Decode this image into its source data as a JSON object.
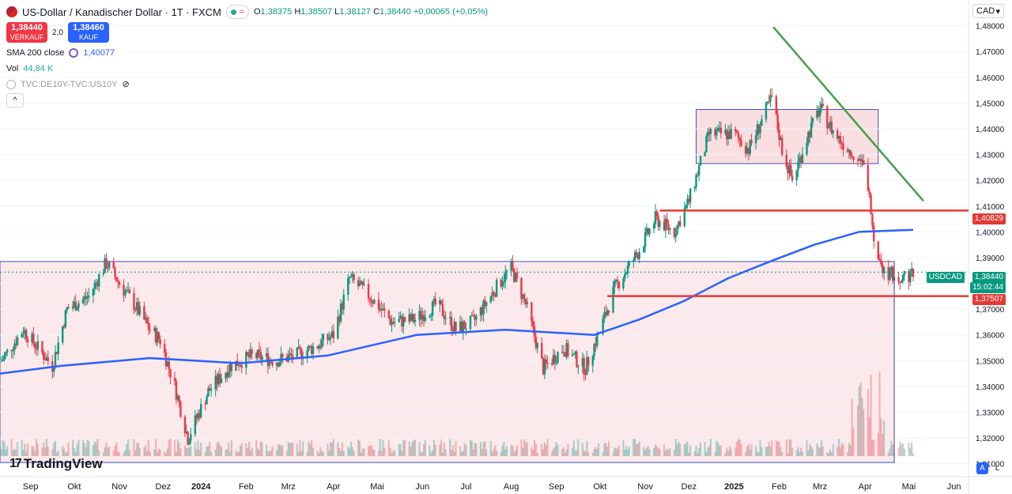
{
  "header": {
    "title": "US-Dollar / Kanadischer Dollar · 1T · FXCM",
    "ohlc": {
      "o_label": "O",
      "o": "1,38375",
      "h_label": "H",
      "h": "1,38507",
      "l_label": "L",
      "l": "1,38127",
      "c_label": "C",
      "c": "1,38440",
      "change": "+0,00065 (+0,05%)"
    },
    "sell": {
      "price": "1,38440",
      "label": "VERKAUF"
    },
    "buy": {
      "price": "1,38460",
      "label": "KAUF"
    },
    "spread": "2,0",
    "sma_label": "SMA 200 close",
    "sma_value": "1,40077",
    "vol_label": "Vol",
    "vol_value": "44,84 K",
    "tvc_label": "TVC:DE10Y-TVC:US10Y",
    "collapse_symbol": "^"
  },
  "axis": {
    "currency": "CAD",
    "y_ticks": [
      "1,48000",
      "1,47000",
      "1,46000",
      "1,45000",
      "1,44000",
      "1,43000",
      "1,42000",
      "1,41000",
      "1,40000",
      "1,39000",
      "1,38000",
      "1,37000",
      "1,36000",
      "1,35000",
      "1,34000",
      "1,33000",
      "1,32000",
      "1,31000"
    ],
    "x_ticks": [
      "Sep",
      "Okt",
      "Nov",
      "Dez",
      "2024",
      "Feb",
      "Mrz",
      "Apr",
      "Mai",
      "Jun",
      "Jul",
      "Aug",
      "Sep",
      "Okt",
      "Nov",
      "Dez",
      "2025",
      "Feb",
      "Mrz",
      "Apr",
      "Mai",
      "Jun"
    ],
    "tags": {
      "resistance": "1,40829",
      "symbol": "USDCAD",
      "last": "1,38440",
      "countdown": "15:02:44",
      "support": "1,37507"
    },
    "auto_btn": "A",
    "log_btn": "L"
  },
  "brand": "TradingView",
  "colors": {
    "up": "#089981",
    "down": "#f23645",
    "sma": "#2962ff",
    "trend": "#43a047",
    "level": "#e53935",
    "zone": "#f8d7da"
  },
  "chart_data": {
    "type": "candlestick",
    "symbol": "USDCAD",
    "interval": "1D",
    "ylim": [
      1.305,
      1.49
    ],
    "x_range": [
      "2023-08-20",
      "2025-06-15"
    ],
    "close_anchors": [
      [
        "2023-08-21",
        1.35
      ],
      [
        "2023-09-05",
        1.362
      ],
      [
        "2023-09-15",
        1.355
      ],
      [
        "2023-09-25",
        1.348
      ],
      [
        "2023-10-05",
        1.37
      ],
      [
        "2023-10-20",
        1.375
      ],
      [
        "2023-11-01",
        1.388
      ],
      [
        "2023-11-10",
        1.38
      ],
      [
        "2023-11-20",
        1.372
      ],
      [
        "2023-12-01",
        1.362
      ],
      [
        "2023-12-08",
        1.358
      ],
      [
        "2023-12-18",
        1.34
      ],
      [
        "2023-12-27",
        1.32
      ],
      [
        "2024-01-10",
        1.338
      ],
      [
        "2024-01-25",
        1.348
      ],
      [
        "2024-02-10",
        1.352
      ],
      [
        "2024-02-25",
        1.35
      ],
      [
        "2024-03-10",
        1.352
      ],
      [
        "2024-03-25",
        1.356
      ],
      [
        "2024-04-05",
        1.36
      ],
      [
        "2024-04-16",
        1.382
      ],
      [
        "2024-04-30",
        1.375
      ],
      [
        "2024-05-15",
        1.365
      ],
      [
        "2024-05-31",
        1.366
      ],
      [
        "2024-06-15",
        1.372
      ],
      [
        "2024-06-28",
        1.362
      ],
      [
        "2024-07-10",
        1.365
      ],
      [
        "2024-07-30",
        1.382
      ],
      [
        "2024-08-05",
        1.386
      ],
      [
        "2024-08-15",
        1.372
      ],
      [
        "2024-08-27",
        1.347
      ],
      [
        "2024-09-10",
        1.355
      ],
      [
        "2024-09-25",
        1.347
      ],
      [
        "2024-10-05",
        1.362
      ],
      [
        "2024-10-15",
        1.378
      ],
      [
        "2024-10-31",
        1.392
      ],
      [
        "2024-11-12",
        1.405
      ],
      [
        "2024-11-25",
        1.4
      ],
      [
        "2024-12-05",
        1.412
      ],
      [
        "2024-12-19",
        1.438
      ],
      [
        "2025-01-05",
        1.438
      ],
      [
        "2025-01-15",
        1.432
      ],
      [
        "2025-01-31",
        1.452
      ],
      [
        "2025-02-07",
        1.432
      ],
      [
        "2025-02-14",
        1.42
      ],
      [
        "2025-02-25",
        1.438
      ],
      [
        "2025-03-05",
        1.448
      ],
      [
        "2025-03-15",
        1.438
      ],
      [
        "2025-03-25",
        1.432
      ],
      [
        "2025-04-02",
        1.428
      ],
      [
        "2025-04-07",
        1.418
      ],
      [
        "2025-04-11",
        1.398
      ],
      [
        "2025-04-18",
        1.385
      ],
      [
        "2025-04-28",
        1.382
      ],
      [
        "2025-05-08",
        1.384
      ]
    ],
    "sma200": {
      "name": "SMA 200 close",
      "last": 1.40077,
      "anchors": [
        [
          "2023-08-20",
          1.345
        ],
        [
          "2023-10-01",
          1.348
        ],
        [
          "2023-12-01",
          1.351
        ],
        [
          "2024-02-01",
          1.349
        ],
        [
          "2024-04-01",
          1.352
        ],
        [
          "2024-06-01",
          1.36
        ],
        [
          "2024-08-01",
          1.362
        ],
        [
          "2024-10-01",
          1.36
        ],
        [
          "2024-11-01",
          1.366
        ],
        [
          "2024-12-01",
          1.373
        ],
        [
          "2025-01-01",
          1.382
        ],
        [
          "2025-02-01",
          1.389
        ],
        [
          "2025-03-01",
          1.395
        ],
        [
          "2025-04-01",
          1.4
        ],
        [
          "2025-05-08",
          1.4008
        ]
      ]
    },
    "horizontal_levels": [
      {
        "label": "1,40829",
        "value": 1.40829,
        "from": "2024-11-15"
      },
      {
        "label": "1,37507",
        "value": 1.37507,
        "from": "2024-10-10"
      }
    ],
    "trendline": {
      "from": [
        "2025-02-01",
        1.4795
      ],
      "to": [
        "2025-05-15",
        1.412
      ]
    },
    "zones": [
      {
        "x0": "2024-12-10",
        "x1": "2025-04-14",
        "y0": 1.4265,
        "y1": 1.4475
      },
      {
        "x0": "2023-08-20",
        "x1": "2025-04-25",
        "y0": 1.3105,
        "y1": 1.3885
      }
    ],
    "annotations": [
      {
        "type": "vertical",
        "date": "2025-04-25",
        "y0": 1.3105,
        "y1": 1.3885
      }
    ]
  }
}
